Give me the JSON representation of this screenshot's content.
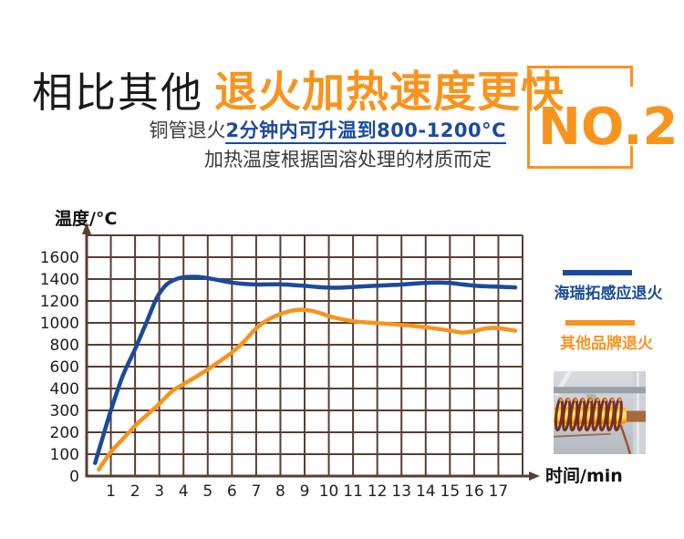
{
  "header": {
    "title_prefix": "相比其他",
    "title_highlight": "退火加热速度更快",
    "badge_label": "NO.2",
    "subtitle_prefix": "铜管退火",
    "subtitle_highlight": "2分钟内可升温到800-1200°C",
    "subtitle_note": "加热温度根据固溶处理的材质而定"
  },
  "colors": {
    "accent_orange": "#F7941E",
    "accent_blue": "#1B4A9C",
    "grid_brown": "#5A3E30",
    "text_dark": "#1A1A1A"
  },
  "chart_data": {
    "type": "line",
    "title": "",
    "ylabel": "温度/°C",
    "xlabel": "时间/min",
    "x_ticks": [
      1,
      2,
      3,
      4,
      5,
      6,
      7,
      8,
      9,
      10,
      11,
      12,
      13,
      14,
      15,
      16,
      17
    ],
    "y_ticks": [
      0,
      100,
      200,
      300,
      400,
      600,
      800,
      1000,
      1200,
      1400,
      1600
    ],
    "y_axis_note": "non-linear scale: 100°C per division up to 400, then 200°C per division",
    "grid": {
      "columns": 18,
      "rows": 11,
      "on": true
    },
    "legend_position": "right",
    "series": [
      {
        "name": "海瑞拓感应退火",
        "color": "#1B4A9C",
        "points": [
          [
            0.35,
            60
          ],
          [
            0.7,
            190
          ],
          [
            1,
            300
          ],
          [
            1.5,
            520
          ],
          [
            2,
            760
          ],
          [
            2.5,
            1020
          ],
          [
            2.9,
            1230
          ],
          [
            3.3,
            1350
          ],
          [
            3.7,
            1400
          ],
          [
            4.1,
            1418
          ],
          [
            4.6,
            1420
          ],
          [
            5,
            1408
          ],
          [
            5.5,
            1388
          ],
          [
            6,
            1368
          ],
          [
            6.5,
            1356
          ],
          [
            7,
            1350
          ],
          [
            7.5,
            1352
          ],
          [
            8,
            1352
          ],
          [
            8.5,
            1346
          ],
          [
            9,
            1338
          ],
          [
            9.5,
            1328
          ],
          [
            10,
            1322
          ],
          [
            10.5,
            1322
          ],
          [
            11,
            1328
          ],
          [
            11.5,
            1334
          ],
          [
            12,
            1340
          ],
          [
            12.5,
            1345
          ],
          [
            13,
            1350
          ],
          [
            13.5,
            1358
          ],
          [
            14,
            1365
          ],
          [
            14.5,
            1368
          ],
          [
            15,
            1364
          ],
          [
            15.5,
            1352
          ],
          [
            16,
            1340
          ],
          [
            16.5,
            1334
          ],
          [
            17,
            1330
          ],
          [
            17.7,
            1324
          ]
        ]
      },
      {
        "name": "其他品牌退火",
        "color": "#F7941E",
        "points": [
          [
            0.5,
            30
          ],
          [
            1,
            110
          ],
          [
            1.5,
            170
          ],
          [
            2,
            230
          ],
          [
            2.5,
            280
          ],
          [
            3,
            330
          ],
          [
            3.5,
            385
          ],
          [
            4,
            440
          ],
          [
            4.5,
            505
          ],
          [
            5,
            575
          ],
          [
            5.5,
            650
          ],
          [
            6,
            730
          ],
          [
            6.5,
            830
          ],
          [
            7,
            950
          ],
          [
            7.5,
            1030
          ],
          [
            8,
            1080
          ],
          [
            8.5,
            1112
          ],
          [
            8.9,
            1120
          ],
          [
            9.3,
            1110
          ],
          [
            9.7,
            1085
          ],
          [
            10,
            1062
          ],
          [
            10.5,
            1035
          ],
          [
            11,
            1015
          ],
          [
            11.5,
            1005
          ],
          [
            12,
            998
          ],
          [
            12.5,
            990
          ],
          [
            13,
            982
          ],
          [
            13.5,
            972
          ],
          [
            14,
            960
          ],
          [
            14.5,
            945
          ],
          [
            15,
            930
          ],
          [
            15.5,
            912
          ],
          [
            16,
            925
          ],
          [
            16.5,
            950
          ],
          [
            17,
            952
          ],
          [
            17.7,
            928
          ]
        ]
      }
    ]
  }
}
